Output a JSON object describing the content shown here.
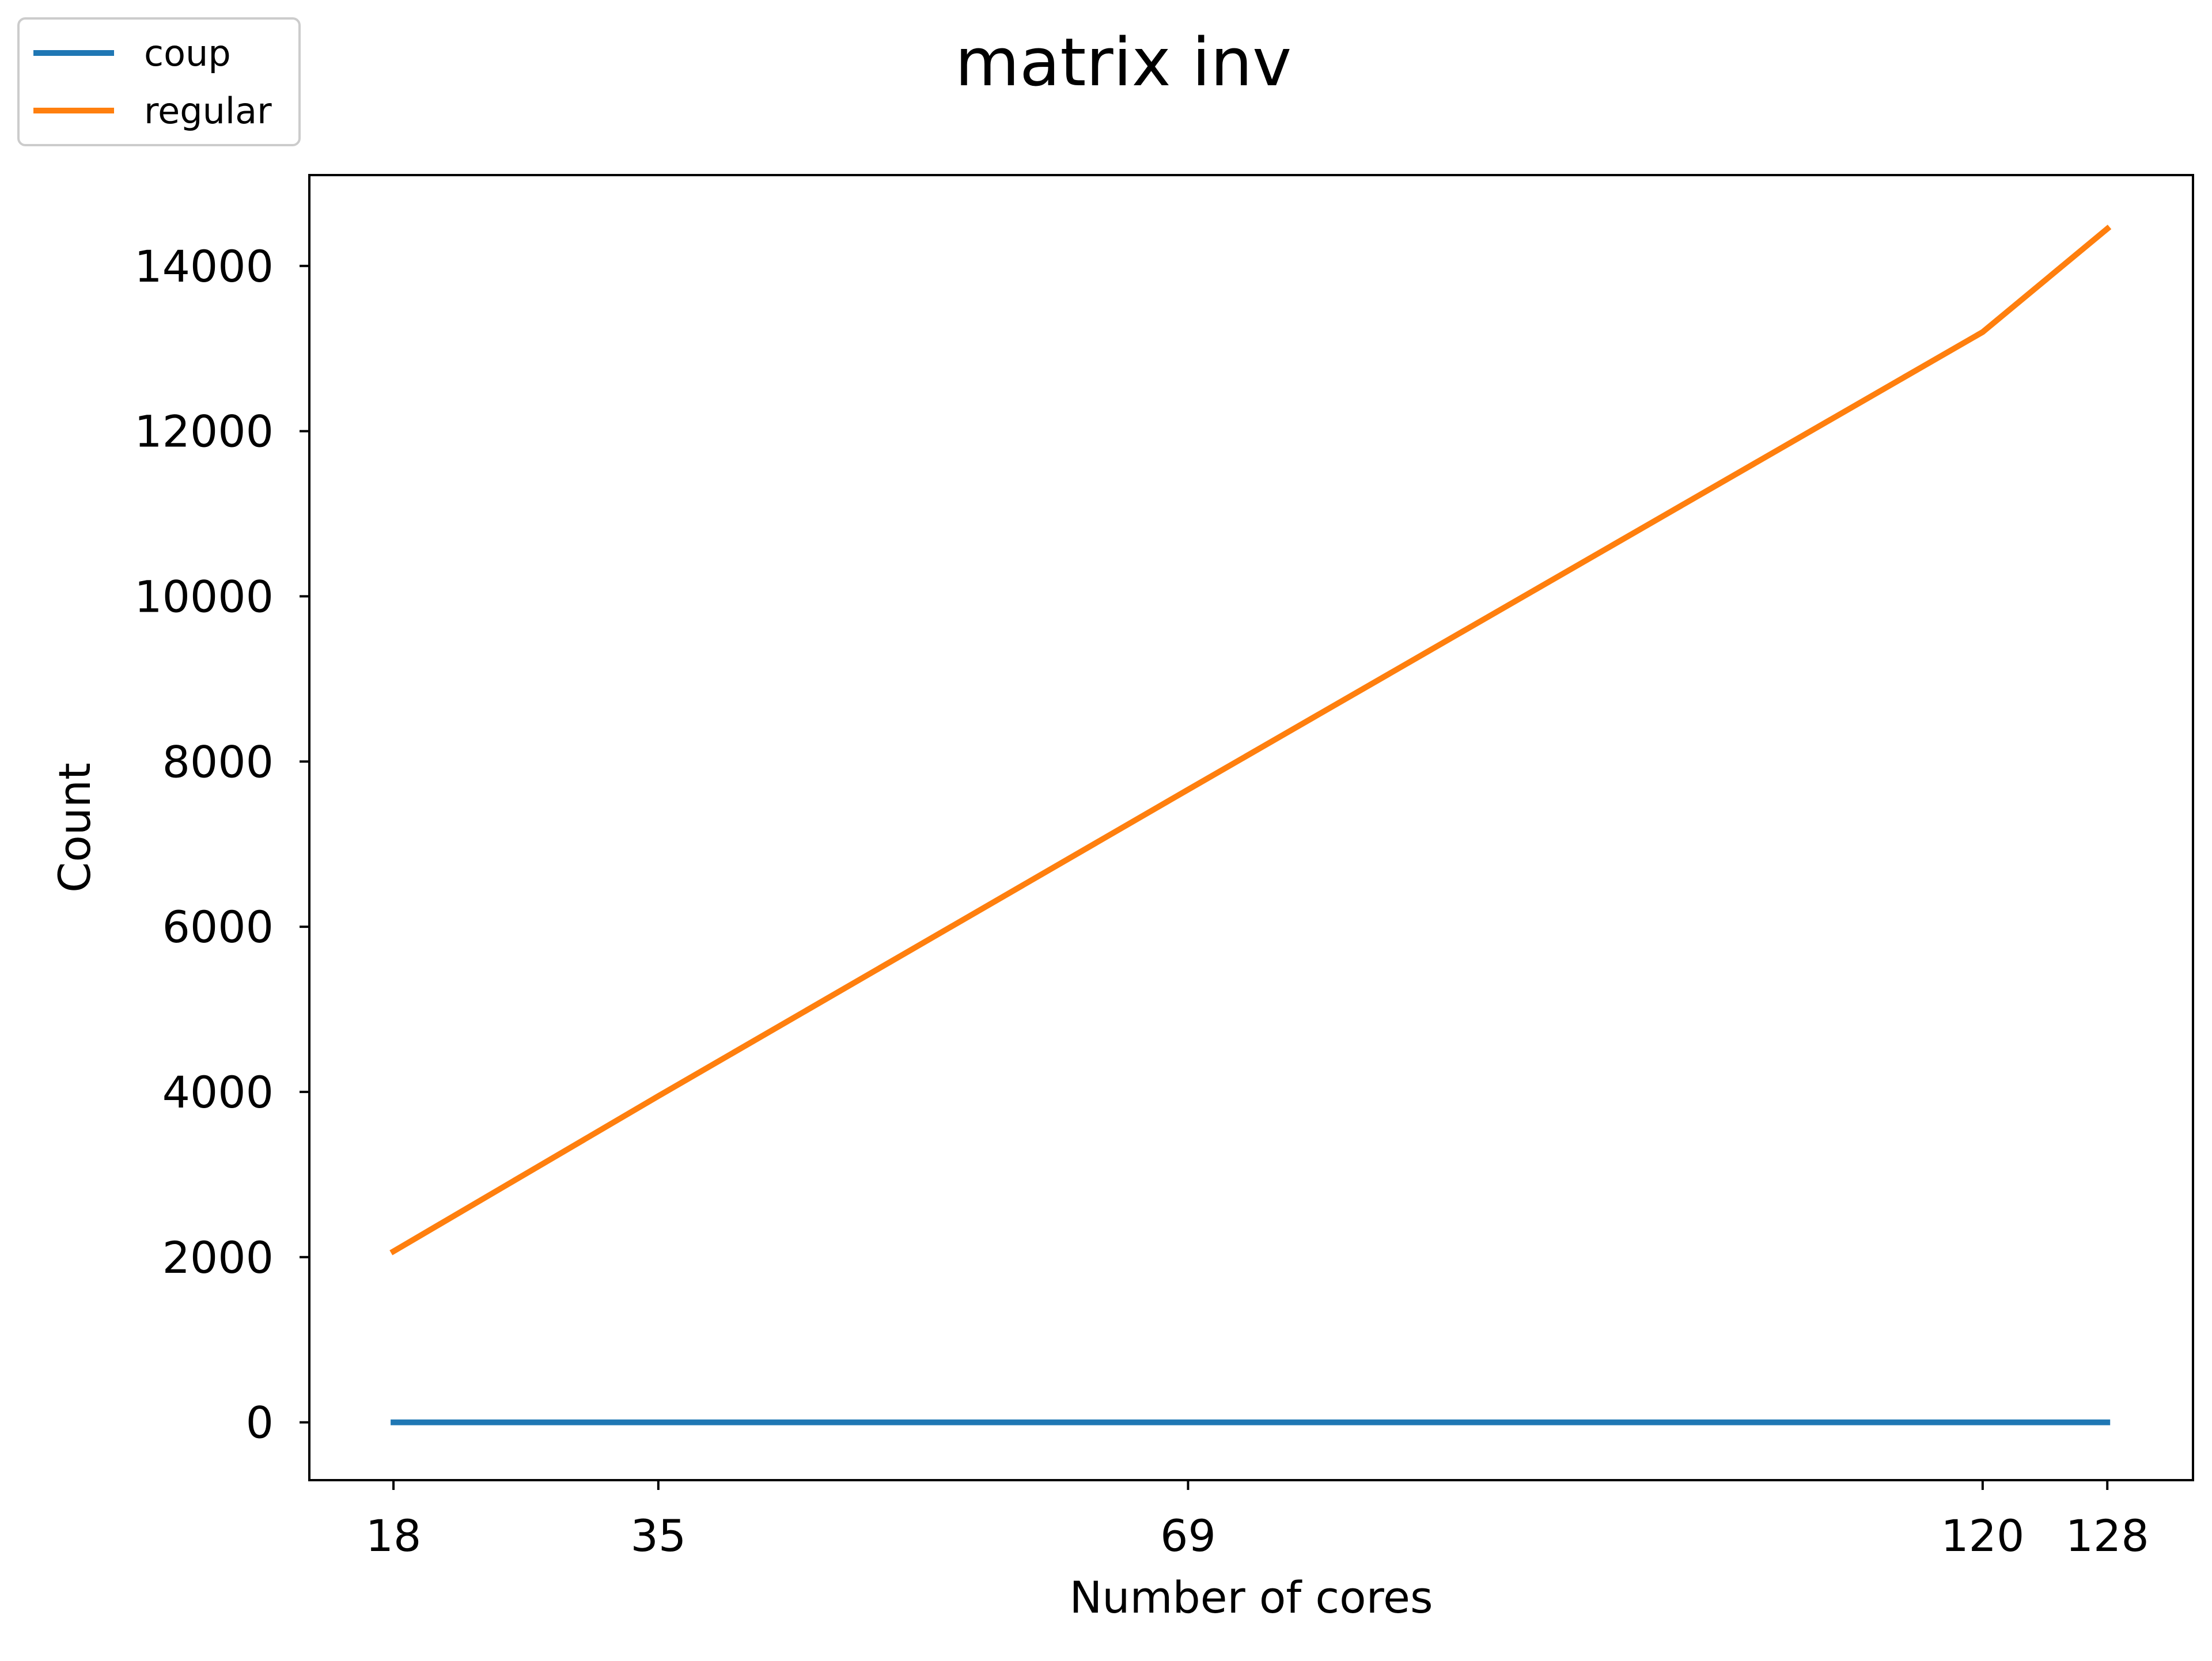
{
  "chart_data": {
    "type": "line",
    "title": "matrix inv",
    "xlabel": "Number of cores",
    "ylabel": "Count",
    "x": [
      18,
      35,
      69,
      120,
      128
    ],
    "x_ticks": [
      18,
      35,
      69,
      120,
      128
    ],
    "y_ticks": [
      0,
      2000,
      4000,
      6000,
      8000,
      10000,
      12000,
      14000
    ],
    "xlim": [
      12.6,
      133.5
    ],
    "ylim": [
      -700,
      15100
    ],
    "grid": false,
    "legend_position": "top-left, outside axes",
    "series": [
      {
        "name": "coup",
        "color": "#1f77b4",
        "values": [
          0,
          0,
          0,
          0,
          0
        ]
      },
      {
        "name": "regular",
        "color": "#ff7f0e",
        "values": [
          2070,
          3950,
          7660,
          13200,
          14450
        ]
      }
    ]
  }
}
